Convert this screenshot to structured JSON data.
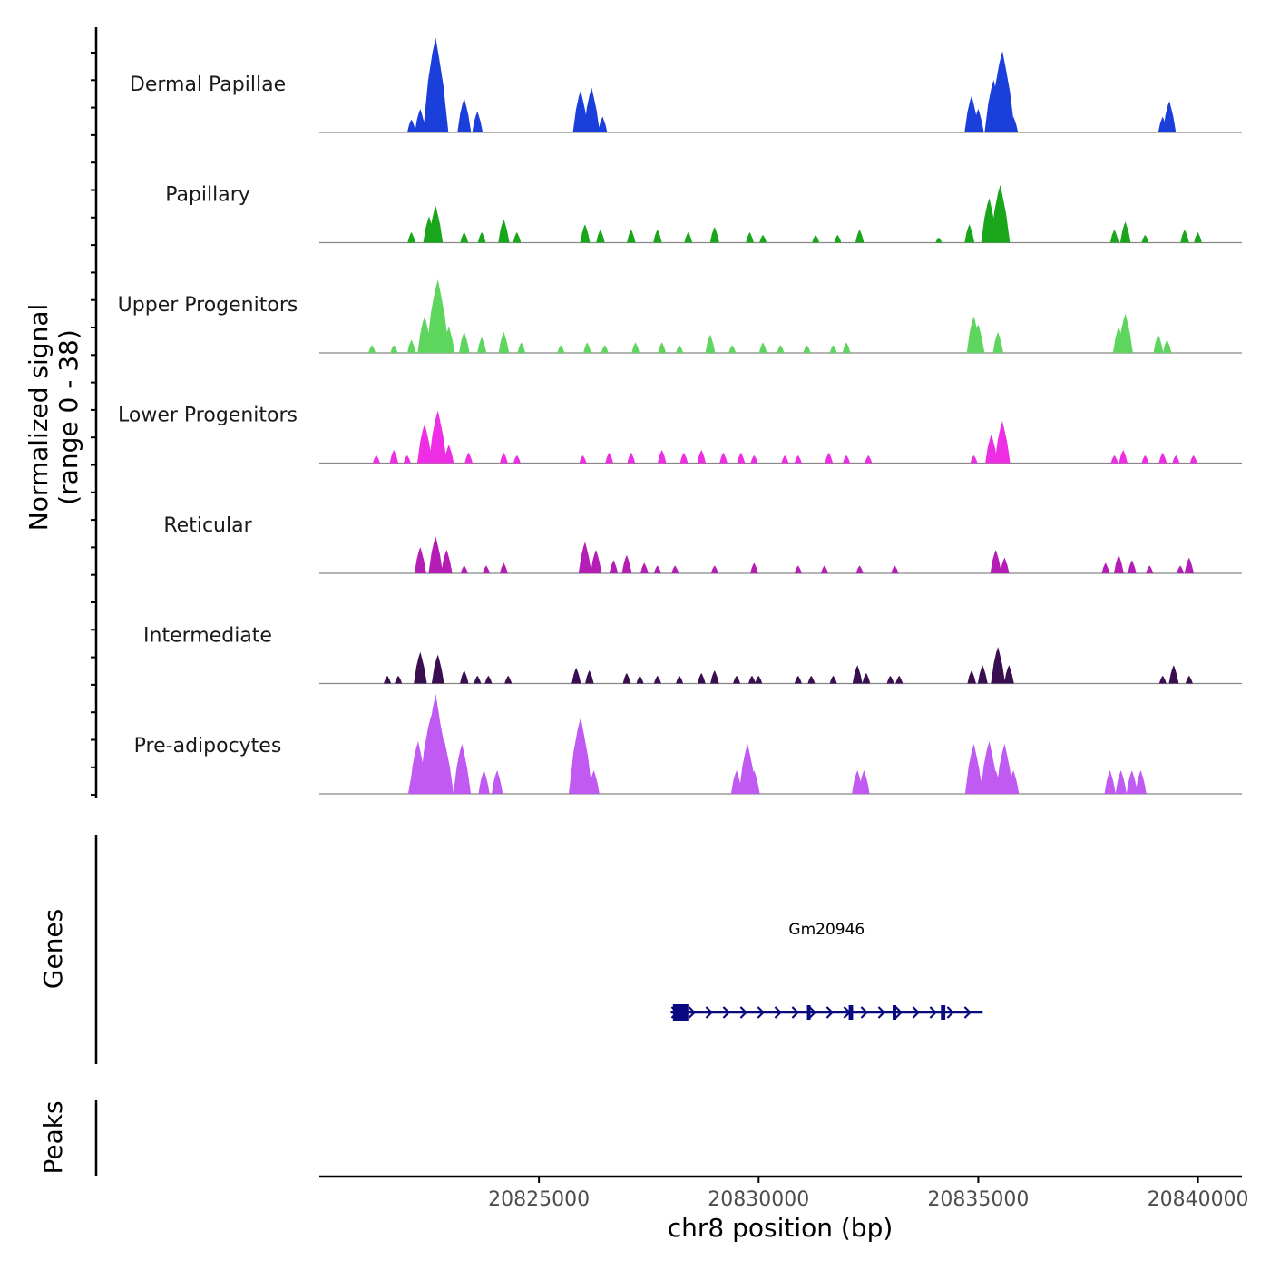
{
  "chart_data": {
    "type": "area",
    "title": "",
    "ylabel_line1": "Normalized signal",
    "ylabel_line2": "(range 0 - 38)",
    "y_range": [
      0,
      38
    ],
    "xlabel": "chr8 position (bp)",
    "xlim": [
      20820000,
      20841000
    ],
    "x_ticks": [
      20825000,
      20830000,
      20835000,
      20840000
    ],
    "x_tick_labels": [
      "20825000",
      "20830000",
      "20835000",
      "20840000"
    ],
    "tracks": [
      {
        "name": "Dermal Papillae",
        "color": "#1a3fdb",
        "peaks": [
          [
            20822100,
            5
          ],
          [
            20822300,
            9
          ],
          [
            20822500,
            12
          ],
          [
            20822650,
            36
          ],
          [
            20822800,
            6
          ],
          [
            20823300,
            13
          ],
          [
            20823600,
            8
          ],
          [
            20825950,
            16
          ],
          [
            20826200,
            17
          ],
          [
            20826450,
            6
          ],
          [
            20834850,
            14
          ],
          [
            20835000,
            9
          ],
          [
            20835350,
            20
          ],
          [
            20835550,
            31
          ],
          [
            20835800,
            6
          ],
          [
            20839200,
            6
          ],
          [
            20839350,
            12
          ]
        ]
      },
      {
        "name": "Papillary",
        "color": "#1aa61a",
        "peaks": [
          [
            20822100,
            4
          ],
          [
            20822500,
            10
          ],
          [
            20822650,
            14
          ],
          [
            20823300,
            4
          ],
          [
            20823700,
            4
          ],
          [
            20824200,
            9
          ],
          [
            20824500,
            4
          ],
          [
            20826050,
            7
          ],
          [
            20826400,
            5
          ],
          [
            20827100,
            5
          ],
          [
            20827700,
            5
          ],
          [
            20828400,
            4
          ],
          [
            20829000,
            6
          ],
          [
            20829800,
            4
          ],
          [
            20830100,
            3
          ],
          [
            20831300,
            3
          ],
          [
            20831800,
            3
          ],
          [
            20832300,
            5
          ],
          [
            20834100,
            2
          ],
          [
            20834800,
            7
          ],
          [
            20835250,
            17
          ],
          [
            20835500,
            22
          ],
          [
            20838100,
            5
          ],
          [
            20838350,
            8
          ],
          [
            20838800,
            3
          ],
          [
            20839700,
            5
          ],
          [
            20840000,
            4
          ]
        ]
      },
      {
        "name": "Upper Progenitors",
        "color": "#5ed65e",
        "peaks": [
          [
            20821200,
            3
          ],
          [
            20821700,
            3
          ],
          [
            20822100,
            5
          ],
          [
            20822400,
            14
          ],
          [
            20822700,
            28
          ],
          [
            20822950,
            10
          ],
          [
            20823300,
            8
          ],
          [
            20823700,
            6
          ],
          [
            20824200,
            8
          ],
          [
            20824600,
            4
          ],
          [
            20825500,
            3
          ],
          [
            20826100,
            4
          ],
          [
            20826500,
            3
          ],
          [
            20827200,
            4
          ],
          [
            20827800,
            4
          ],
          [
            20828200,
            3
          ],
          [
            20828900,
            7
          ],
          [
            20829400,
            3
          ],
          [
            20830100,
            4
          ],
          [
            20830500,
            3
          ],
          [
            20831100,
            3
          ],
          [
            20831700,
            3
          ],
          [
            20832000,
            4
          ],
          [
            20834900,
            14
          ],
          [
            20835000,
            11
          ],
          [
            20835450,
            8
          ],
          [
            20838200,
            10
          ],
          [
            20838350,
            15
          ],
          [
            20839100,
            7
          ],
          [
            20839300,
            5
          ]
        ]
      },
      {
        "name": "Lower Progenitors",
        "color": "#ee2ee5",
        "peaks": [
          [
            20821300,
            3
          ],
          [
            20821700,
            5
          ],
          [
            20822000,
            3
          ],
          [
            20822400,
            15
          ],
          [
            20822700,
            20
          ],
          [
            20822950,
            7
          ],
          [
            20823400,
            4
          ],
          [
            20824200,
            4
          ],
          [
            20824500,
            3
          ],
          [
            20826000,
            3
          ],
          [
            20826600,
            4
          ],
          [
            20827100,
            4
          ],
          [
            20827800,
            5
          ],
          [
            20828300,
            4
          ],
          [
            20828700,
            5
          ],
          [
            20829200,
            4
          ],
          [
            20829600,
            4
          ],
          [
            20829900,
            3
          ],
          [
            20830600,
            3
          ],
          [
            20830900,
            3
          ],
          [
            20831600,
            4
          ],
          [
            20832000,
            3
          ],
          [
            20832500,
            3
          ],
          [
            20834900,
            3
          ],
          [
            20835300,
            11
          ],
          [
            20835550,
            16
          ],
          [
            20838100,
            3
          ],
          [
            20838300,
            5
          ],
          [
            20838800,
            3
          ],
          [
            20839200,
            4
          ],
          [
            20839500,
            3
          ],
          [
            20839900,
            3
          ]
        ]
      },
      {
        "name": "Reticular",
        "color": "#b41eb4",
        "peaks": [
          [
            20822300,
            10
          ],
          [
            20822650,
            14
          ],
          [
            20822900,
            9
          ],
          [
            20823300,
            3
          ],
          [
            20823800,
            3
          ],
          [
            20824200,
            4
          ],
          [
            20826050,
            12
          ],
          [
            20826300,
            9
          ],
          [
            20826700,
            5
          ],
          [
            20827000,
            7
          ],
          [
            20827400,
            4
          ],
          [
            20827700,
            3
          ],
          [
            20828100,
            3
          ],
          [
            20829000,
            3
          ],
          [
            20829900,
            4
          ],
          [
            20830900,
            3
          ],
          [
            20831500,
            3
          ],
          [
            20832300,
            3
          ],
          [
            20833100,
            3
          ],
          [
            20835400,
            9
          ],
          [
            20835600,
            6
          ],
          [
            20837900,
            4
          ],
          [
            20838200,
            7
          ],
          [
            20838500,
            5
          ],
          [
            20838900,
            3
          ],
          [
            20839600,
            3
          ],
          [
            20839800,
            6
          ]
        ]
      },
      {
        "name": "Intermediate",
        "color": "#3a0f52",
        "peaks": [
          [
            20821550,
            3
          ],
          [
            20821800,
            3
          ],
          [
            20822300,
            12
          ],
          [
            20822700,
            11
          ],
          [
            20823300,
            5
          ],
          [
            20823600,
            3
          ],
          [
            20823850,
            3
          ],
          [
            20824300,
            3
          ],
          [
            20825850,
            6
          ],
          [
            20826150,
            5
          ],
          [
            20827000,
            4
          ],
          [
            20827300,
            3
          ],
          [
            20827700,
            3
          ],
          [
            20828200,
            3
          ],
          [
            20828700,
            4
          ],
          [
            20829000,
            5
          ],
          [
            20829500,
            3
          ],
          [
            20829850,
            3
          ],
          [
            20830000,
            3
          ],
          [
            20830900,
            3
          ],
          [
            20831200,
            3
          ],
          [
            20831700,
            3
          ],
          [
            20832250,
            7
          ],
          [
            20832450,
            4
          ],
          [
            20833000,
            3
          ],
          [
            20833200,
            3
          ],
          [
            20834850,
            5
          ],
          [
            20835100,
            7
          ],
          [
            20835450,
            14
          ],
          [
            20835700,
            7
          ],
          [
            20839200,
            3
          ],
          [
            20839450,
            7
          ],
          [
            20839800,
            3
          ]
        ]
      },
      {
        "name": "Pre-adipocytes",
        "color": "#c05af2",
        "peaks": [
          [
            20822150,
            9
          ],
          [
            20822250,
            20
          ],
          [
            20822350,
            9
          ],
          [
            20822550,
            30
          ],
          [
            20822650,
            38
          ],
          [
            20822750,
            27
          ],
          [
            20822850,
            20
          ],
          [
            20823250,
            19
          ],
          [
            20823750,
            9
          ],
          [
            20824050,
            9
          ],
          [
            20825950,
            29
          ],
          [
            20826250,
            9
          ],
          [
            20829500,
            9
          ],
          [
            20829750,
            19
          ],
          [
            20829900,
            9
          ],
          [
            20832250,
            9
          ],
          [
            20832400,
            9
          ],
          [
            20834900,
            19
          ],
          [
            20835000,
            9
          ],
          [
            20835250,
            20
          ],
          [
            20835400,
            9
          ],
          [
            20835600,
            19
          ],
          [
            20835800,
            9
          ],
          [
            20838000,
            9
          ],
          [
            20838250,
            9
          ],
          [
            20838500,
            9
          ],
          [
            20838700,
            9
          ]
        ]
      }
    ],
    "genes_label": "Genes",
    "peaks_label": "Peaks",
    "genes": [
      {
        "name": "Gm20946",
        "start": 20828000,
        "end": 20835100,
        "strand": "+",
        "exons": [
          [
            20828050,
            20828400
          ],
          [
            20831100,
            20831150
          ],
          [
            20832050,
            20832150
          ],
          [
            20833050,
            20833100
          ],
          [
            20834150,
            20834250
          ]
        ]
      }
    ]
  }
}
